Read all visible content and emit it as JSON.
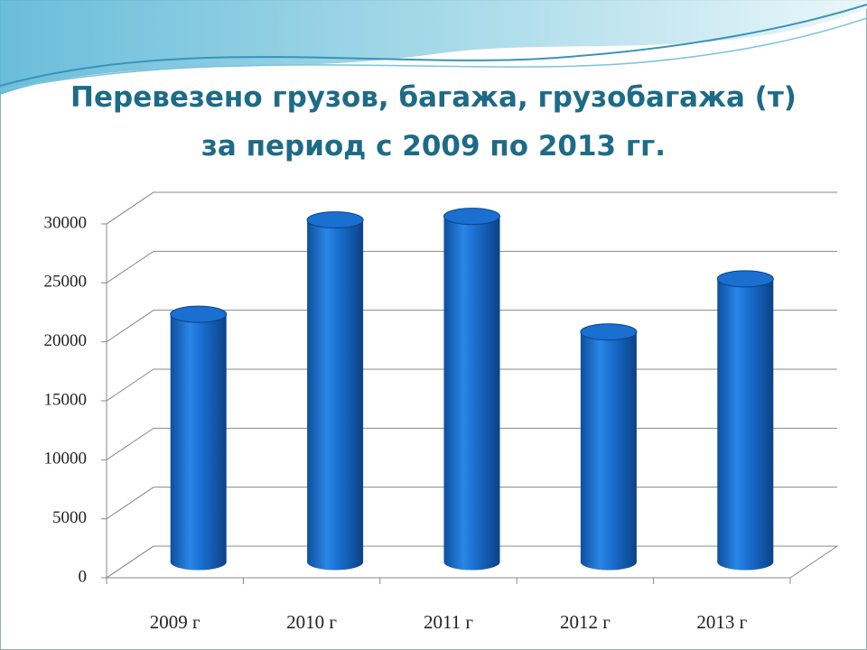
{
  "chart_data": {
    "type": "bar3d",
    "title": [
      "Перевезено грузов, багажа, грузобагажа (т)",
      "за период с 2009 по 2013 гг."
    ],
    "categories": [
      "2009 г",
      "2010 г",
      "2011 г",
      "2012 г",
      "2013 г"
    ],
    "values": [
      21000,
      29000,
      29300,
      19500,
      24000
    ],
    "color": "#1a6fd0",
    "ylim": [
      0,
      30000
    ],
    "yticks": [
      0,
      5000,
      10000,
      15000,
      20000,
      25000,
      30000
    ],
    "grid": true
  }
}
